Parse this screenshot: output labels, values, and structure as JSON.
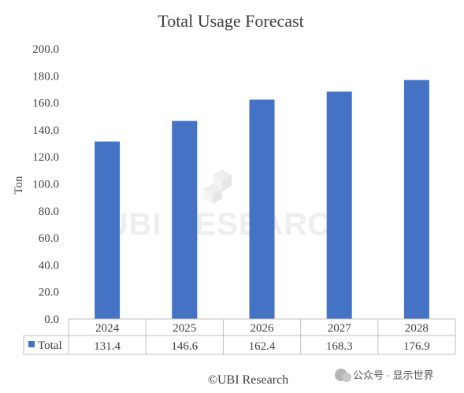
{
  "chart_data": {
    "type": "bar",
    "title": "Total Usage Forecast",
    "ylabel": "Ton",
    "categories": [
      "2024",
      "2025",
      "2026",
      "2027",
      "2028"
    ],
    "series": [
      {
        "name": "Total",
        "values": [
          131.4,
          146.6,
          162.4,
          168.3,
          176.9
        ],
        "color": "#4472c4"
      }
    ],
    "value_labels": [
      "131.4",
      "146.6",
      "162.4",
      "168.3",
      "176.9"
    ],
    "ylim": [
      0,
      200
    ],
    "yticks": [
      "0.0",
      "20.0",
      "40.0",
      "60.0",
      "80.0",
      "100.0",
      "120.0",
      "140.0",
      "160.0",
      "180.0",
      "200.0"
    ],
    "grid": false,
    "legend": "data-table",
    "data_table": true
  },
  "watermark": {
    "text": "UBI RESEARCH"
  },
  "credit": "©UBI Research",
  "source_tag": "公众号 · 显示世界"
}
